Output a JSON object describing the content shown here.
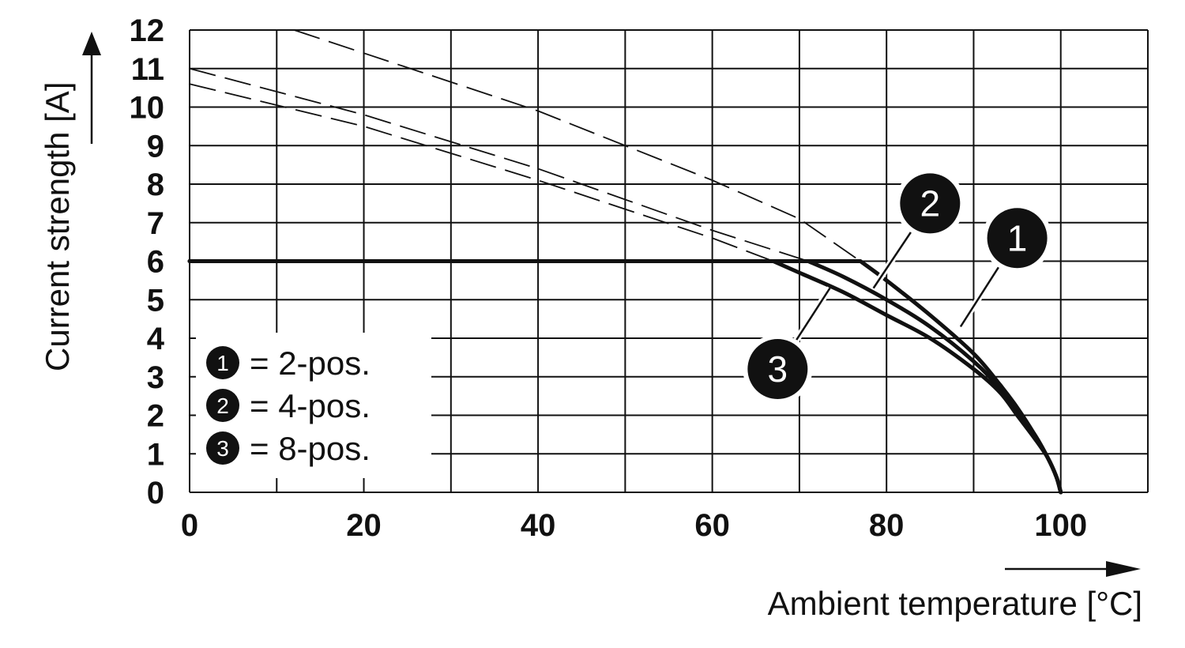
{
  "chart_data": {
    "type": "line",
    "title": "",
    "xlabel": "Ambient temperature [°C]",
    "ylabel": "Current strength [A]",
    "xlim": [
      0,
      110
    ],
    "ylim": [
      0,
      12
    ],
    "x_ticks": [
      0,
      20,
      40,
      60,
      80,
      100
    ],
    "x_tick_labels": [
      "0",
      "20",
      "40",
      "60",
      "80",
      "100"
    ],
    "y_ticks": [
      0,
      1,
      2,
      3,
      4,
      5,
      6,
      7,
      8,
      9,
      10,
      11,
      12
    ],
    "y_tick_labels": [
      "0",
      "1",
      "2",
      "3",
      "4",
      "5",
      "6",
      "7",
      "8",
      "9",
      "10",
      "11",
      "12"
    ],
    "grid": true,
    "legend": {
      "placement": "bottom-left",
      "entries": [
        {
          "marker": "1",
          "label": "= 2-pos."
        },
        {
          "marker": "2",
          "label": "= 4-pos."
        },
        {
          "marker": "3",
          "label": "= 8-pos."
        }
      ]
    },
    "series": [
      {
        "marker": "1",
        "style": "solid",
        "x": [
          0,
          77,
          80,
          85,
          90,
          93,
          95,
          97,
          98.5,
          99.5,
          100
        ],
        "y": [
          6,
          6,
          5.5,
          4.6,
          3.6,
          2.8,
          2.2,
          1.5,
          0.9,
          0.4,
          0
        ]
      },
      {
        "marker": "2",
        "style": "solid",
        "x": [
          0,
          71,
          75,
          80,
          85,
          90,
          93,
          95,
          97,
          98.5,
          99.5,
          100
        ],
        "y": [
          6,
          6,
          5.6,
          5.0,
          4.3,
          3.4,
          2.7,
          2.1,
          1.5,
          0.9,
          0.4,
          0
        ]
      },
      {
        "marker": "3",
        "style": "solid",
        "x": [
          0,
          67,
          70,
          75,
          80,
          85,
          90,
          93,
          95,
          97,
          98.5,
          99.5,
          100
        ],
        "y": [
          6,
          6,
          5.7,
          5.2,
          4.6,
          4.0,
          3.2,
          2.6,
          2.0,
          1.4,
          0.9,
          0.4,
          0
        ]
      },
      {
        "marker": "1",
        "style": "dashed",
        "x": [
          12,
          40,
          60,
          70,
          77
        ],
        "y": [
          12,
          9.9,
          8.1,
          7.1,
          6
        ]
      },
      {
        "marker": "2",
        "style": "dashed",
        "x": [
          0,
          20,
          40,
          60,
          71
        ],
        "y": [
          11,
          9.8,
          8.4,
          6.8,
          6
        ]
      },
      {
        "marker": "3",
        "style": "dashed",
        "x": [
          0,
          20,
          40,
          60,
          67
        ],
        "y": [
          10.6,
          9.5,
          8.1,
          6.6,
          6
        ]
      }
    ],
    "callouts": [
      {
        "marker": "1",
        "point": [
          88.5,
          4.3
        ],
        "badge_at": [
          95,
          6.6
        ]
      },
      {
        "marker": "2",
        "point": [
          78.5,
          5.3
        ],
        "badge_at": [
          85,
          7.5
        ]
      },
      {
        "marker": "3",
        "point": [
          73.5,
          5.3
        ],
        "badge_at": [
          67.5,
          3.2
        ]
      }
    ],
    "colors": {
      "ink": "#111111",
      "paper": "#ffffff",
      "grid": "#111111"
    }
  }
}
